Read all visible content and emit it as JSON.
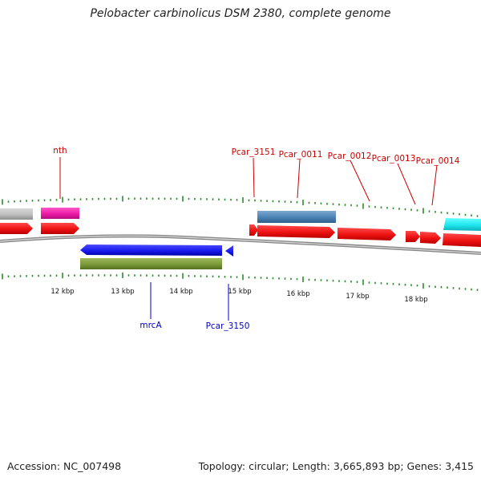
{
  "title": "Pelobacter carbinolicus DSM 2380, complete genome",
  "footer": {
    "accession": "Accession: NC_007498",
    "topology": "Topology: circular; Length: 3,665,893 bp; Genes: 3,415"
  },
  "colors": {
    "forward_cds": "#ee1111",
    "reverse_cds": "#1a1aee",
    "tick": "#2e8b2e",
    "label_forward": "#cc0000",
    "label_reverse": "#0000cc",
    "backbone": "#888888"
  },
  "scale_labels": [
    "12 kbp",
    "13 kbp",
    "14 kbp",
    "15 kbp",
    "16 kbp",
    "17 kbp",
    "18 kbp"
  ],
  "forward_labels": [
    "nth",
    "Pcar_3151",
    "Pcar_0011",
    "Pcar_0012",
    "Pcar_0013",
    "Pcar_0014"
  ],
  "reverse_labels": [
    "mrcA",
    "Pcar_3150"
  ]
}
